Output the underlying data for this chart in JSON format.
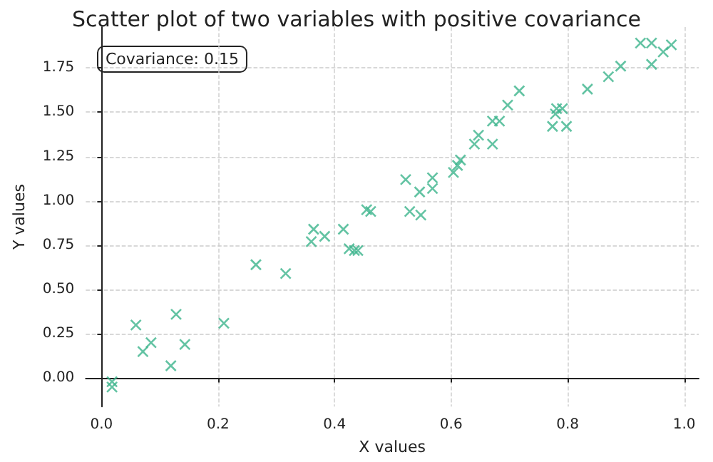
{
  "chart_data": {
    "type": "scatter",
    "title": "Scatter plot of two variables with positive covariance",
    "xlabel": "X values",
    "ylabel": "Y values",
    "annotations": [
      "Covariance: 0.15"
    ],
    "marker": "cross",
    "grid": true,
    "xlim": [
      -0.027,
      1.025
    ],
    "ylim": [
      -0.16,
      1.98
    ],
    "xticks": [
      {
        "value": 0,
        "label": "0.0"
      },
      {
        "value": 0.2,
        "label": "0.2"
      },
      {
        "value": 0.4,
        "label": "0.4"
      },
      {
        "value": 0.6,
        "label": "0.6"
      },
      {
        "value": 0.8,
        "label": "0.8"
      },
      {
        "value": 1,
        "label": "1.0"
      }
    ],
    "yticks": [
      {
        "value": 0,
        "label": "0.00"
      },
      {
        "value": 0.25,
        "label": "0.25"
      },
      {
        "value": 0.5,
        "label": "0.50"
      },
      {
        "value": 0.75,
        "label": "0.75"
      },
      {
        "value": 1,
        "label": "1.00"
      },
      {
        "value": 1.25,
        "label": "1.25"
      },
      {
        "value": 1.5,
        "label": "1.50"
      },
      {
        "value": 1.75,
        "label": "1.75"
      }
    ],
    "series": [
      {
        "color": "#3cb48c",
        "x": [
          0.018,
          0.018,
          0.059,
          0.071,
          0.085,
          0.119,
          0.128,
          0.143,
          0.21,
          0.265,
          0.316,
          0.36,
          0.364,
          0.383,
          0.415,
          0.425,
          0.434,
          0.44,
          0.455,
          0.462,
          0.522,
          0.529,
          0.546,
          0.548,
          0.568,
          0.568,
          0.604,
          0.611,
          0.616,
          0.64,
          0.647,
          0.671,
          0.671,
          0.683,
          0.697,
          0.717,
          0.774,
          0.779,
          0.781,
          0.791,
          0.798,
          0.834,
          0.87,
          0.891,
          0.925,
          0.944,
          0.944,
          0.964,
          0.978
        ],
        "values": [
          -0.02,
          -0.05,
          0.3,
          0.15,
          0.2,
          0.07,
          0.36,
          0.19,
          0.31,
          0.64,
          0.59,
          0.77,
          0.84,
          0.8,
          0.84,
          0.73,
          0.72,
          0.72,
          0.95,
          0.94,
          1.12,
          0.94,
          1.05,
          0.92,
          1.13,
          1.07,
          1.16,
          1.2,
          1.23,
          1.32,
          1.37,
          1.45,
          1.32,
          1.45,
          1.54,
          1.62,
          1.42,
          1.49,
          1.52,
          1.52,
          1.42,
          1.63,
          1.7,
          1.76,
          1.89,
          1.89,
          1.77,
          1.84,
          1.88
        ]
      }
    ]
  }
}
